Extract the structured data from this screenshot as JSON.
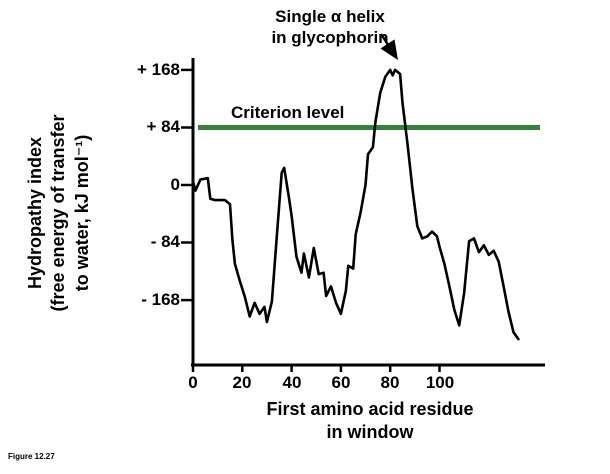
{
  "figure": {
    "caption": "Figure 12.27"
  },
  "annotation": {
    "line1": "Single α helix",
    "line2": "in glycophorin"
  },
  "criterion": {
    "label": "Criterion level"
  },
  "axes": {
    "y_label_line1": "Hydropathy index",
    "y_label_line2": "(free energy of transfer",
    "y_label_line3": "to water, kJ mol⁻¹)",
    "x_label_line1": "First amino acid residue",
    "x_label_line2": "in window",
    "y_tick_labels": [
      "+ 168",
      "+ 84",
      "0",
      "- 84",
      "- 168"
    ],
    "x_tick_labels": [
      "0",
      "20",
      "40",
      "60",
      "80",
      "100"
    ]
  },
  "chart_data": {
    "type": "line",
    "title": "",
    "xlabel": "First amino acid residue in window",
    "ylabel": "Hydropathy index (free energy of transfer to water, kJ mol⁻¹)",
    "xlim": [
      0,
      140
    ],
    "ylim": [
      -240,
      200
    ],
    "x_ticks": [
      0,
      20,
      40,
      60,
      80,
      100
    ],
    "y_ticks": [
      168,
      84,
      0,
      -84,
      -168
    ],
    "grid": false,
    "legend": "none",
    "criterion_level": 84,
    "criterion_label": "Criterion level",
    "annotation_text": "Single α helix in glycophorin",
    "annotation_points_at": [
      82,
      168
    ],
    "colors": {
      "line": "#000000",
      "criterion": "#38813c",
      "background": "#ffffff"
    },
    "series": [
      {
        "name": "hydropathy",
        "points": [
          [
            0,
            5
          ],
          [
            1,
            -8
          ],
          [
            3,
            8
          ],
          [
            6,
            10
          ],
          [
            7,
            -20
          ],
          [
            9,
            -22
          ],
          [
            13,
            -22
          ],
          [
            15,
            -28
          ],
          [
            16,
            -80
          ],
          [
            17,
            -115
          ],
          [
            19,
            -140
          ],
          [
            21,
            -163
          ],
          [
            23,
            -192
          ],
          [
            25,
            -172
          ],
          [
            27,
            -188
          ],
          [
            29,
            -178
          ],
          [
            30,
            -200
          ],
          [
            32,
            -170
          ],
          [
            34,
            -75
          ],
          [
            36,
            18
          ],
          [
            37,
            25
          ],
          [
            39,
            -20
          ],
          [
            40,
            -45
          ],
          [
            42,
            -105
          ],
          [
            44,
            -128
          ],
          [
            45,
            -100
          ],
          [
            47,
            -135
          ],
          [
            49,
            -92
          ],
          [
            51,
            -130
          ],
          [
            53,
            -128
          ],
          [
            54,
            -162
          ],
          [
            56,
            -148
          ],
          [
            58,
            -172
          ],
          [
            60,
            -188
          ],
          [
            62,
            -155
          ],
          [
            63,
            -118
          ],
          [
            65,
            -122
          ],
          [
            66,
            -72
          ],
          [
            68,
            -40
          ],
          [
            70,
            0
          ],
          [
            71,
            45
          ],
          [
            73,
            55
          ],
          [
            74,
            92
          ],
          [
            76,
            135
          ],
          [
            78,
            158
          ],
          [
            80,
            168
          ],
          [
            81,
            160
          ],
          [
            82,
            168
          ],
          [
            84,
            162
          ],
          [
            85,
            120
          ],
          [
            87,
            60
          ],
          [
            89,
            -5
          ],
          [
            91,
            -60
          ],
          [
            93,
            -78
          ],
          [
            95,
            -75
          ],
          [
            97,
            -68
          ],
          [
            99,
            -75
          ],
          [
            100,
            -90
          ],
          [
            102,
            -115
          ],
          [
            104,
            -148
          ],
          [
            106,
            -182
          ],
          [
            108,
            -205
          ],
          [
            110,
            -158
          ],
          [
            112,
            -82
          ],
          [
            114,
            -78
          ],
          [
            116,
            -98
          ],
          [
            118,
            -88
          ],
          [
            120,
            -102
          ],
          [
            122,
            -96
          ],
          [
            124,
            -112
          ],
          [
            126,
            -148
          ],
          [
            128,
            -185
          ],
          [
            130,
            -215
          ],
          [
            132,
            -225
          ]
        ]
      }
    ]
  }
}
